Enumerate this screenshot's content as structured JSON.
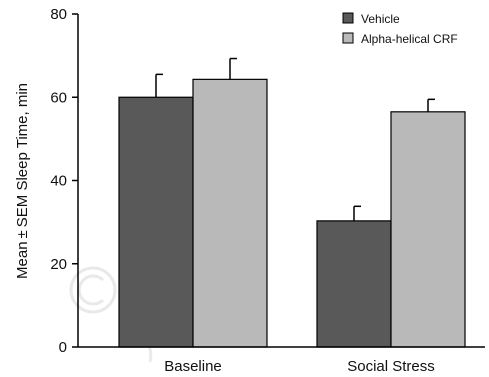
{
  "chart_data": {
    "type": "bar",
    "categories": [
      "Baseline",
      "Social Stress"
    ],
    "series": [
      {
        "name": "Vehicle",
        "values": [
          60,
          30.3
        ],
        "errors": [
          5.5,
          3.5
        ],
        "color": "#595959"
      },
      {
        "name": "Alpha-helical CRF",
        "values": [
          64.3,
          56.5
        ],
        "errors": [
          5,
          3
        ],
        "color": "#b9b9b9"
      }
    ],
    "title": "",
    "xlabel": "",
    "ylabel": "Mean ± SEM Sleep Time, min",
    "ylim": [
      0,
      80
    ],
    "yticks": [
      0,
      20,
      40,
      60,
      80
    ],
    "ytick_labels": [
      "0",
      "20",
      "40",
      "60",
      "80"
    ],
    "grid": false,
    "legend_position": "top-right",
    "watermark": "©"
  }
}
